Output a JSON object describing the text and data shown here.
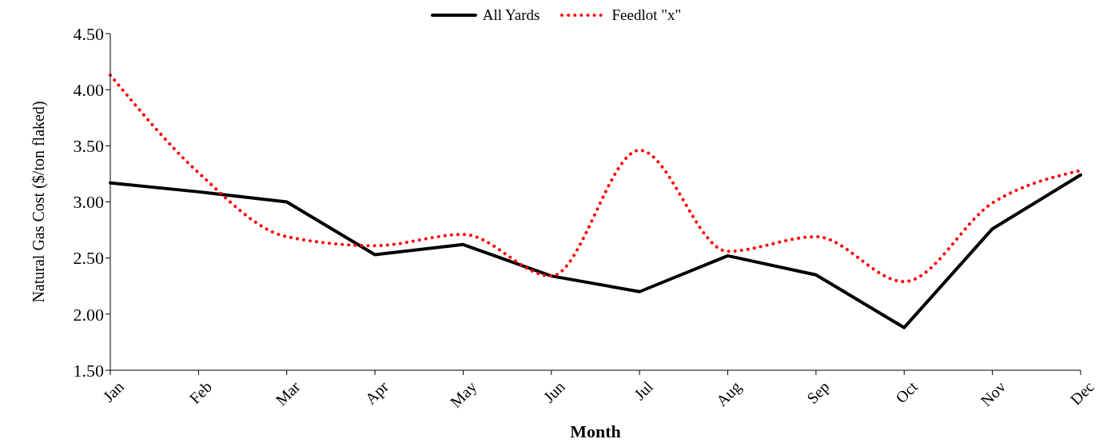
{
  "chart_data": {
    "type": "line",
    "xlabel": "Month",
    "ylabel": "Natural Gas Cost ($/ton flaked)",
    "categories": [
      "Jan",
      "Feb",
      "Mar",
      "Apr",
      "May",
      "Jun",
      "Jul",
      "Aug",
      "Sep",
      "Oct",
      "Nov",
      "Dec"
    ],
    "series": [
      {
        "name": "All Yards",
        "color": "#000000",
        "line_style": "solid",
        "values": [
          3.17,
          3.09,
          3.0,
          2.53,
          2.62,
          2.34,
          2.2,
          2.52,
          2.35,
          1.88,
          2.76,
          3.24
        ]
      },
      {
        "name": "Feedlot \"x\"",
        "color": "#ff0000",
        "line_style": "dotted",
        "values": [
          4.13,
          3.26,
          2.69,
          2.61,
          2.71,
          2.34,
          3.46,
          2.56,
          2.69,
          2.29,
          2.99,
          3.28
        ]
      }
    ],
    "ylim": [
      1.5,
      4.5
    ],
    "yticks": [
      {
        "value": 1.5,
        "label": "1.50"
      },
      {
        "value": 2,
        "label": "2.00"
      },
      {
        "value": 2.5,
        "label": "2.50"
      },
      {
        "value": 3,
        "label": "3.00"
      },
      {
        "value": 3.5,
        "label": "3.50"
      },
      {
        "value": 4,
        "label": "4.00"
      },
      {
        "value": 4.5,
        "label": "4.50"
      }
    ],
    "grid": false,
    "legend": "top",
    "marker": "none"
  }
}
